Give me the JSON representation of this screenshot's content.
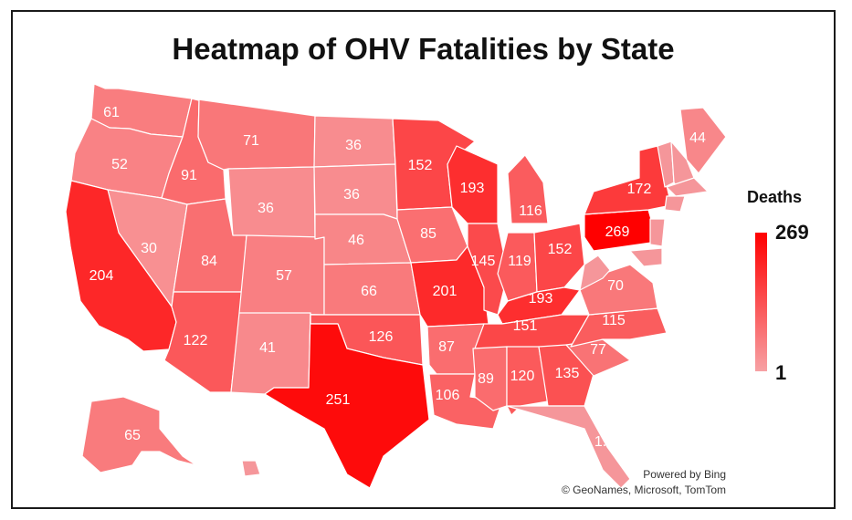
{
  "chart_data": {
    "type": "choropleth",
    "title": "Heatmap of OHV Fatalities by State",
    "legend": {
      "title": "Deaths",
      "max_label": "269",
      "min_label": "1",
      "min": 1,
      "max": 269,
      "color_min": "#f7a1a4",
      "color_max": "#ff0000",
      "placement": "right"
    },
    "credits": [
      "Powered by Bing",
      "© GeoNames, Microsoft, TomTom"
    ],
    "states": [
      {
        "state": "WA",
        "value": 61,
        "label": "61"
      },
      {
        "state": "OR",
        "value": 52,
        "label": "52"
      },
      {
        "state": "CA",
        "value": 204,
        "label": "204"
      },
      {
        "state": "NV",
        "value": 30,
        "label": "30"
      },
      {
        "state": "ID",
        "value": 91,
        "label": "91"
      },
      {
        "state": "MT",
        "value": 71,
        "label": "71"
      },
      {
        "state": "WY",
        "value": 36,
        "label": "36"
      },
      {
        "state": "UT",
        "value": 84,
        "label": "84"
      },
      {
        "state": "AZ",
        "value": 122,
        "label": "122"
      },
      {
        "state": "CO",
        "value": 57,
        "label": "57"
      },
      {
        "state": "NM",
        "value": 41,
        "label": "41"
      },
      {
        "state": "ND",
        "value": 36,
        "label": "36"
      },
      {
        "state": "SD",
        "value": 36,
        "label": "36"
      },
      {
        "state": "NE",
        "value": 46,
        "label": "46"
      },
      {
        "state": "KS",
        "value": 66,
        "label": "66"
      },
      {
        "state": "OK",
        "value": 126,
        "label": "126"
      },
      {
        "state": "TX",
        "value": 251,
        "label": "251"
      },
      {
        "state": "MN",
        "value": 152,
        "label": "152"
      },
      {
        "state": "IA",
        "value": 85,
        "label": "85"
      },
      {
        "state": "MO",
        "value": 201,
        "label": "201"
      },
      {
        "state": "AR",
        "value": 87,
        "label": "87"
      },
      {
        "state": "LA",
        "value": 106,
        "label": "106"
      },
      {
        "state": "WI",
        "value": 193,
        "label": "193"
      },
      {
        "state": "IL",
        "value": 145,
        "label": "145"
      },
      {
        "state": "MI",
        "value": 116,
        "label": "116"
      },
      {
        "state": "IN",
        "value": 119,
        "label": "119"
      },
      {
        "state": "OH",
        "value": 152,
        "label": "152"
      },
      {
        "state": "KY",
        "value": 193,
        "label": "193"
      },
      {
        "state": "TN",
        "value": 151,
        "label": "151"
      },
      {
        "state": "MS",
        "value": 89,
        "label": "89"
      },
      {
        "state": "AL",
        "value": 120,
        "label": "120"
      },
      {
        "state": "GA",
        "value": 135,
        "label": "135"
      },
      {
        "state": "FL",
        "value": null,
        "label": "1..."
      },
      {
        "state": "SC",
        "value": 77,
        "label": "77"
      },
      {
        "state": "NC",
        "value": 115,
        "label": "115"
      },
      {
        "state": "VA",
        "value": 70,
        "label": "70"
      },
      {
        "state": "WV",
        "value": null,
        "label": ""
      },
      {
        "state": "PA",
        "value": 269,
        "label": "269"
      },
      {
        "state": "NY",
        "value": 172,
        "label": "172"
      },
      {
        "state": "ME",
        "value": 44,
        "label": "44"
      },
      {
        "state": "VT",
        "value": null,
        "label": ""
      },
      {
        "state": "NH",
        "value": null,
        "label": ""
      },
      {
        "state": "MA",
        "value": null,
        "label": ""
      },
      {
        "state": "CT",
        "value": null,
        "label": ""
      },
      {
        "state": "NJ",
        "value": null,
        "label": ""
      },
      {
        "state": "MD",
        "value": null,
        "label": ""
      },
      {
        "state": "AK",
        "value": 65,
        "label": "65"
      },
      {
        "state": "HI",
        "value": null,
        "label": ""
      }
    ]
  }
}
